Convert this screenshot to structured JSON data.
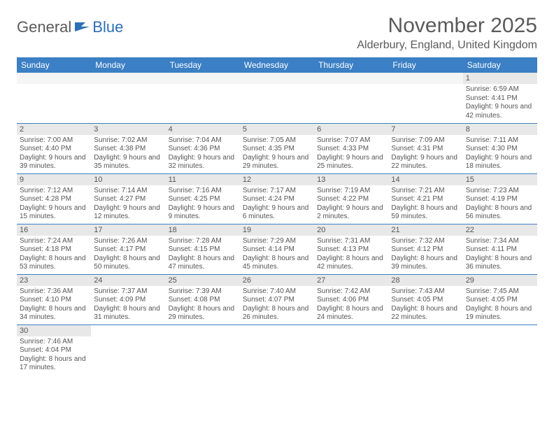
{
  "logo": {
    "text1": "General",
    "text2": "Blue"
  },
  "title": "November 2025",
  "location": "Alderbury, England, United Kingdom",
  "colors": {
    "header_bg": "#3b7fc4",
    "header_text": "#ffffff",
    "daynum_bg": "#e8e8e8",
    "border": "#3b7fc4",
    "text": "#555555",
    "logo_gray": "#5a5a5a",
    "logo_blue": "#2d6fb5"
  },
  "weekdays": [
    "Sunday",
    "Monday",
    "Tuesday",
    "Wednesday",
    "Thursday",
    "Friday",
    "Saturday"
  ],
  "weeks": [
    [
      null,
      null,
      null,
      null,
      null,
      null,
      {
        "day": "1",
        "sunrise": "Sunrise: 6:59 AM",
        "sunset": "Sunset: 4:41 PM",
        "daylight": "Daylight: 9 hours and 42 minutes."
      }
    ],
    [
      {
        "day": "2",
        "sunrise": "Sunrise: 7:00 AM",
        "sunset": "Sunset: 4:40 PM",
        "daylight": "Daylight: 9 hours and 39 minutes."
      },
      {
        "day": "3",
        "sunrise": "Sunrise: 7:02 AM",
        "sunset": "Sunset: 4:38 PM",
        "daylight": "Daylight: 9 hours and 35 minutes."
      },
      {
        "day": "4",
        "sunrise": "Sunrise: 7:04 AM",
        "sunset": "Sunset: 4:36 PM",
        "daylight": "Daylight: 9 hours and 32 minutes."
      },
      {
        "day": "5",
        "sunrise": "Sunrise: 7:05 AM",
        "sunset": "Sunset: 4:35 PM",
        "daylight": "Daylight: 9 hours and 29 minutes."
      },
      {
        "day": "6",
        "sunrise": "Sunrise: 7:07 AM",
        "sunset": "Sunset: 4:33 PM",
        "daylight": "Daylight: 9 hours and 25 minutes."
      },
      {
        "day": "7",
        "sunrise": "Sunrise: 7:09 AM",
        "sunset": "Sunset: 4:31 PM",
        "daylight": "Daylight: 9 hours and 22 minutes."
      },
      {
        "day": "8",
        "sunrise": "Sunrise: 7:11 AM",
        "sunset": "Sunset: 4:30 PM",
        "daylight": "Daylight: 9 hours and 18 minutes."
      }
    ],
    [
      {
        "day": "9",
        "sunrise": "Sunrise: 7:12 AM",
        "sunset": "Sunset: 4:28 PM",
        "daylight": "Daylight: 9 hours and 15 minutes."
      },
      {
        "day": "10",
        "sunrise": "Sunrise: 7:14 AM",
        "sunset": "Sunset: 4:27 PM",
        "daylight": "Daylight: 9 hours and 12 minutes."
      },
      {
        "day": "11",
        "sunrise": "Sunrise: 7:16 AM",
        "sunset": "Sunset: 4:25 PM",
        "daylight": "Daylight: 9 hours and 9 minutes."
      },
      {
        "day": "12",
        "sunrise": "Sunrise: 7:17 AM",
        "sunset": "Sunset: 4:24 PM",
        "daylight": "Daylight: 9 hours and 6 minutes."
      },
      {
        "day": "13",
        "sunrise": "Sunrise: 7:19 AM",
        "sunset": "Sunset: 4:22 PM",
        "daylight": "Daylight: 9 hours and 2 minutes."
      },
      {
        "day": "14",
        "sunrise": "Sunrise: 7:21 AM",
        "sunset": "Sunset: 4:21 PM",
        "daylight": "Daylight: 8 hours and 59 minutes."
      },
      {
        "day": "15",
        "sunrise": "Sunrise: 7:23 AM",
        "sunset": "Sunset: 4:19 PM",
        "daylight": "Daylight: 8 hours and 56 minutes."
      }
    ],
    [
      {
        "day": "16",
        "sunrise": "Sunrise: 7:24 AM",
        "sunset": "Sunset: 4:18 PM",
        "daylight": "Daylight: 8 hours and 53 minutes."
      },
      {
        "day": "17",
        "sunrise": "Sunrise: 7:26 AM",
        "sunset": "Sunset: 4:17 PM",
        "daylight": "Daylight: 8 hours and 50 minutes."
      },
      {
        "day": "18",
        "sunrise": "Sunrise: 7:28 AM",
        "sunset": "Sunset: 4:15 PM",
        "daylight": "Daylight: 8 hours and 47 minutes."
      },
      {
        "day": "19",
        "sunrise": "Sunrise: 7:29 AM",
        "sunset": "Sunset: 4:14 PM",
        "daylight": "Daylight: 8 hours and 45 minutes."
      },
      {
        "day": "20",
        "sunrise": "Sunrise: 7:31 AM",
        "sunset": "Sunset: 4:13 PM",
        "daylight": "Daylight: 8 hours and 42 minutes."
      },
      {
        "day": "21",
        "sunrise": "Sunrise: 7:32 AM",
        "sunset": "Sunset: 4:12 PM",
        "daylight": "Daylight: 8 hours and 39 minutes."
      },
      {
        "day": "22",
        "sunrise": "Sunrise: 7:34 AM",
        "sunset": "Sunset: 4:11 PM",
        "daylight": "Daylight: 8 hours and 36 minutes."
      }
    ],
    [
      {
        "day": "23",
        "sunrise": "Sunrise: 7:36 AM",
        "sunset": "Sunset: 4:10 PM",
        "daylight": "Daylight: 8 hours and 34 minutes."
      },
      {
        "day": "24",
        "sunrise": "Sunrise: 7:37 AM",
        "sunset": "Sunset: 4:09 PM",
        "daylight": "Daylight: 8 hours and 31 minutes."
      },
      {
        "day": "25",
        "sunrise": "Sunrise: 7:39 AM",
        "sunset": "Sunset: 4:08 PM",
        "daylight": "Daylight: 8 hours and 29 minutes."
      },
      {
        "day": "26",
        "sunrise": "Sunrise: 7:40 AM",
        "sunset": "Sunset: 4:07 PM",
        "daylight": "Daylight: 8 hours and 26 minutes."
      },
      {
        "day": "27",
        "sunrise": "Sunrise: 7:42 AM",
        "sunset": "Sunset: 4:06 PM",
        "daylight": "Daylight: 8 hours and 24 minutes."
      },
      {
        "day": "28",
        "sunrise": "Sunrise: 7:43 AM",
        "sunset": "Sunset: 4:05 PM",
        "daylight": "Daylight: 8 hours and 22 minutes."
      },
      {
        "day": "29",
        "sunrise": "Sunrise: 7:45 AM",
        "sunset": "Sunset: 4:05 PM",
        "daylight": "Daylight: 8 hours and 19 minutes."
      }
    ],
    [
      {
        "day": "30",
        "sunrise": "Sunrise: 7:46 AM",
        "sunset": "Sunset: 4:04 PM",
        "daylight": "Daylight: 8 hours and 17 minutes."
      },
      null,
      null,
      null,
      null,
      null,
      null
    ]
  ]
}
